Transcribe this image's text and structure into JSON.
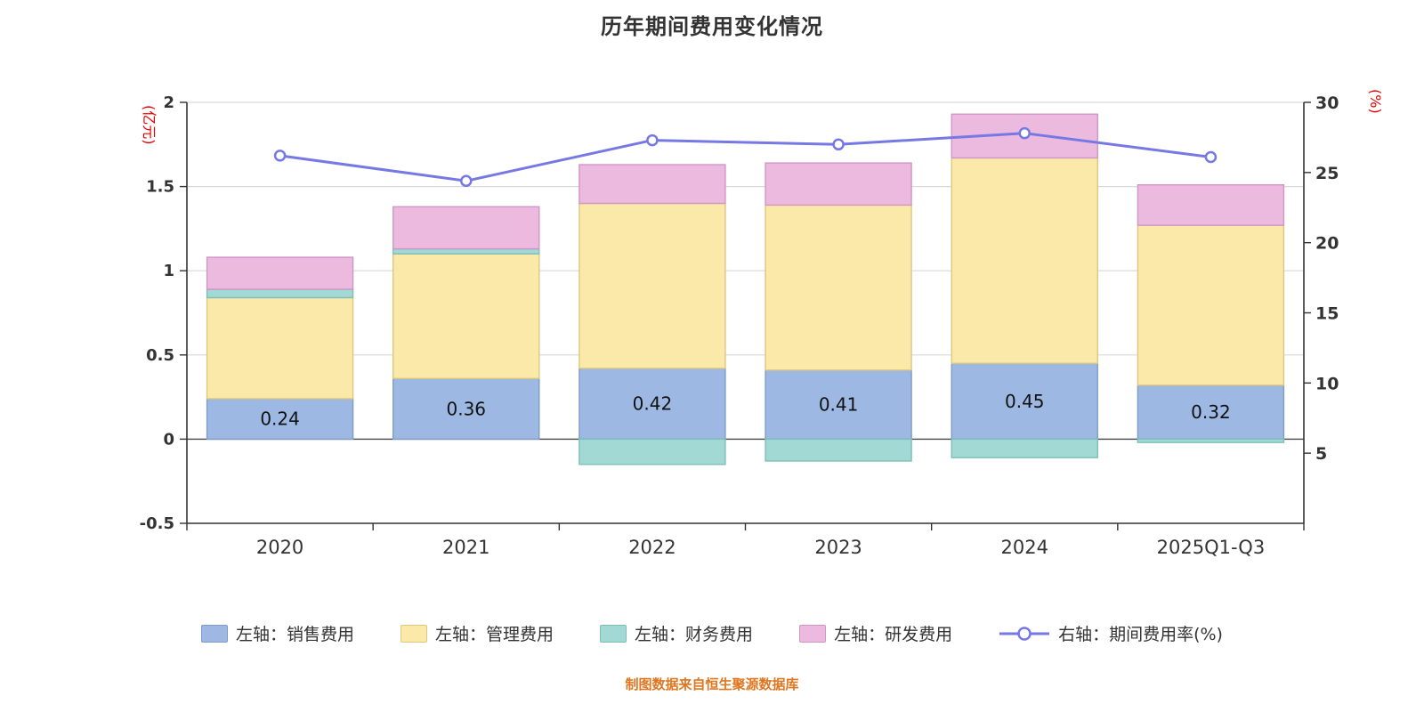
{
  "title": "历年期间费用变化情况",
  "source_note": "制图数据来自恒生聚源数据库",
  "colors": {
    "title": "#333333",
    "axis": "#333333",
    "grid": "#d9d9d9",
    "zero_line": "#444444",
    "axis_unit": "#e60000",
    "source": "#e0761f",
    "bar_label": "#111111",
    "line": "#7678e3"
  },
  "left_axis": {
    "unit": "(亿元)",
    "min": -0.5,
    "max": 2,
    "tick_values": [
      2,
      1.5,
      1,
      0.5,
      0,
      -0.5
    ],
    "tick_labels": [
      "2",
      "1.5",
      "1",
      "0.5",
      "0",
      "-0.5"
    ]
  },
  "right_axis": {
    "unit": "(%)",
    "min": 0,
    "max": 30,
    "tick_values": [
      30,
      25,
      20,
      15,
      10,
      5
    ],
    "tick_labels": [
      "30",
      "25",
      "20",
      "15",
      "10",
      "5"
    ]
  },
  "chart_data": {
    "type": "bar",
    "subtype": "stacked-bars-with-line",
    "categories": [
      "2020",
      "2021",
      "2022",
      "2023",
      "2024",
      "2025Q1-Q3"
    ],
    "series": [
      {
        "name": "左轴：销售费用",
        "color": "#9db9e3",
        "border": "#7e9cc9",
        "values": [
          0.24,
          0.36,
          0.42,
          0.41,
          0.45,
          0.32
        ]
      },
      {
        "name": "左轴：管理费用",
        "color": "#fbe9a9",
        "border": "#dcc77e",
        "values": [
          0.6,
          0.74,
          0.98,
          0.98,
          1.22,
          0.95
        ]
      },
      {
        "name": "左轴：财务费用",
        "color": "#a2d9d4",
        "border": "#7dbfb8",
        "values": [
          0.05,
          0.03,
          -0.15,
          -0.13,
          -0.11,
          -0.02
        ]
      },
      {
        "name": "左轴：研发费用",
        "color": "#ebbade",
        "border": "#cf97c4",
        "values": [
          0.19,
          0.25,
          0.23,
          0.25,
          0.26,
          0.24
        ]
      }
    ],
    "line_series": {
      "name": "右轴：期间费用率(%)",
      "color": "#7678e3",
      "values": [
        26.2,
        24.4,
        27.3,
        27.0,
        27.8,
        26.1
      ]
    },
    "bar_value_labels": [
      "0.24",
      "0.36",
      "0.42",
      "0.41",
      "0.45",
      "0.32"
    ],
    "legend_position": "bottom",
    "grid": true
  }
}
